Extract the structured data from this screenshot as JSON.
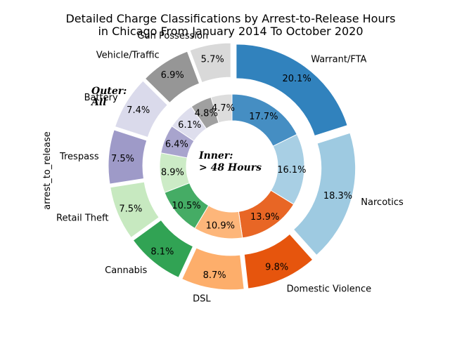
{
  "chart_data": {
    "type": "pie",
    "title_lines": [
      "Detailed Charge Classifications by Arrest-to-Release Hours",
      "in Chicago From January 2014 To October 2020"
    ],
    "ylabel": "arrest_to_release",
    "outer_note_lines": [
      "Outer:",
      "All"
    ],
    "inner_note_lines": [
      "Inner:",
      "> 48 Hours"
    ],
    "categories": [
      "Warrant/FTA",
      "Narcotics",
      "Domestic Violence",
      "DSL",
      "Cannabis",
      "Retail Theft",
      "Trespass",
      "Battery",
      "Vehicle/Traffic",
      "Gun Possession"
    ],
    "series": [
      {
        "name": "Outer:\nAll",
        "values": [
          20.1,
          18.3,
          9.8,
          8.7,
          8.1,
          7.5,
          7.5,
          7.4,
          6.9,
          5.7
        ]
      },
      {
        "name": "Inner:\n> 48 Hours",
        "values": [
          17.7,
          16.1,
          13.9,
          10.9,
          10.5,
          8.9,
          6.4,
          6.1,
          4.8,
          4.7
        ]
      }
    ],
    "colors": [
      "#3182bd",
      "#9ecae1",
      "#e6550d",
      "#fdae6b",
      "#31a354",
      "#c7e9c0",
      "#9e9ac8",
      "#dadaeb",
      "#969696",
      "#d9d9d9"
    ]
  }
}
